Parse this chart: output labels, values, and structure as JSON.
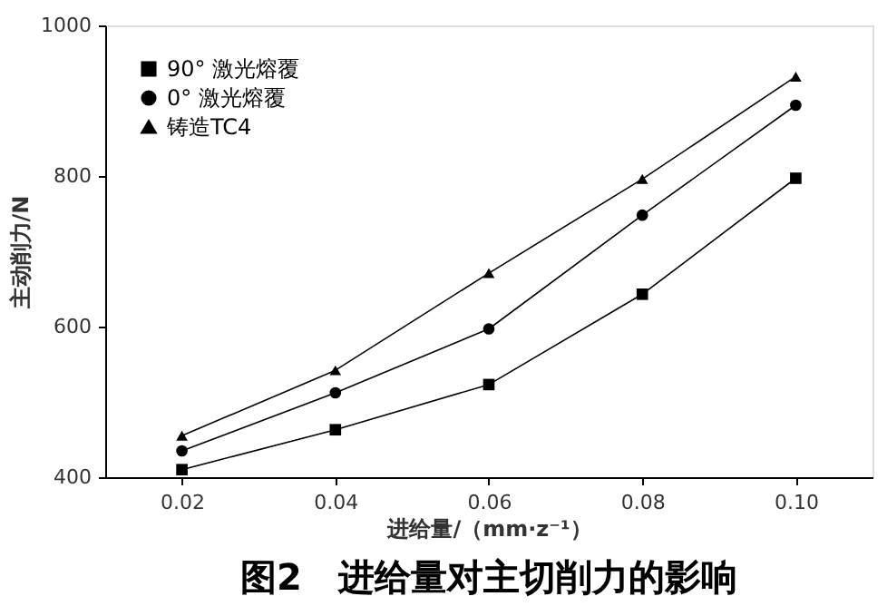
{
  "chart_data": {
    "type": "line",
    "title": "图2　进给量对主切削力的影响",
    "xlabel": "进给量/（mm·z⁻¹）",
    "ylabel": "主动削力/N",
    "x": [
      0.02,
      0.04,
      0.06,
      0.08,
      0.1
    ],
    "series": [
      {
        "name": "90° 激光熔覆",
        "color": "#000000",
        "marker": "square",
        "values": [
          410,
          463,
          523,
          643,
          797
        ]
      },
      {
        "name": "0° 激光熔覆",
        "color": "#000000",
        "marker": "circle",
        "values": [
          435,
          512,
          597,
          748,
          894
        ]
      },
      {
        "name": "铸造TC4",
        "color": "#000000",
        "marker": "triangle",
        "values": [
          455,
          542,
          671,
          796,
          932
        ]
      }
    ],
    "xlim": [
      0.01,
      0.11
    ],
    "xticks": [
      0.02,
      0.04,
      0.06,
      0.08,
      {
        "value": 0.1,
        "label": "0.10"
      }
    ],
    "ylim": [
      400,
      1000
    ],
    "yticks": [
      400,
      600,
      800,
      1000
    ],
    "grid": false,
    "legend": "top left",
    "line_style": "solid"
  }
}
